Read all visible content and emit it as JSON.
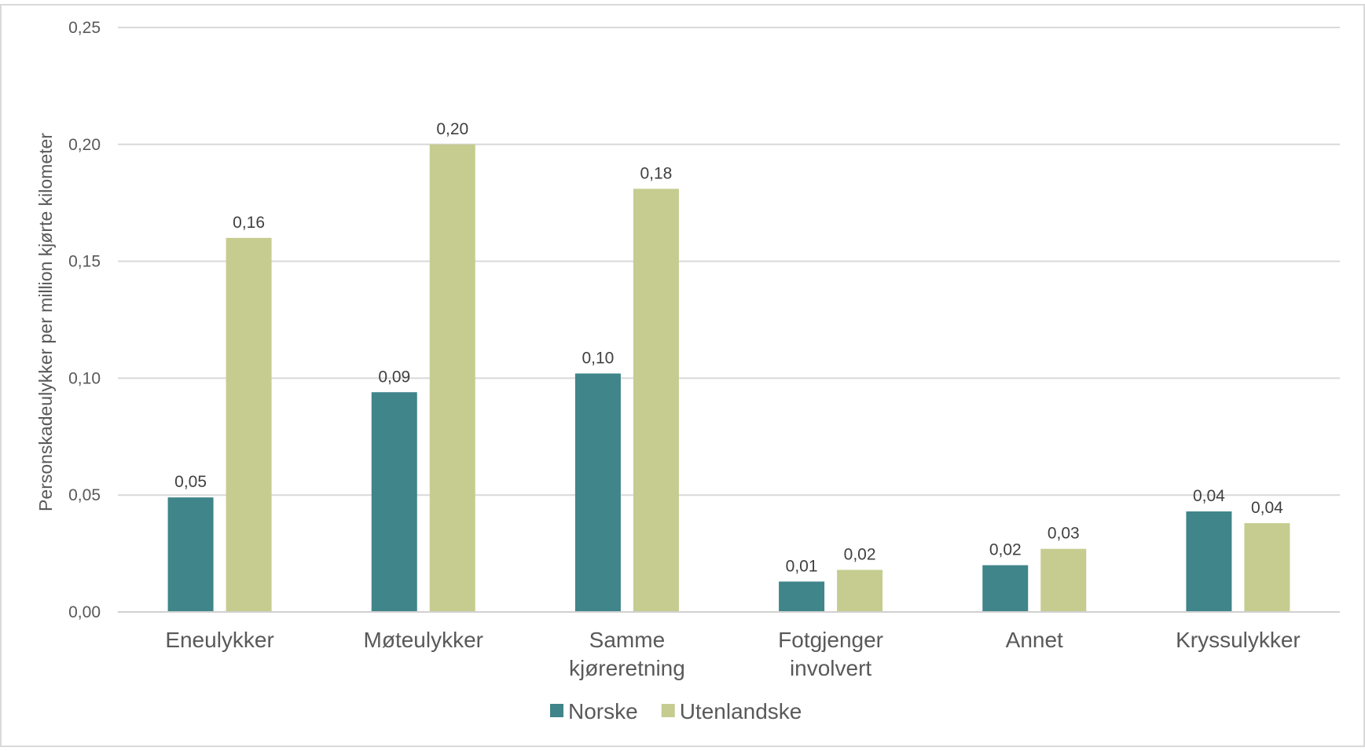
{
  "chart_data": {
    "type": "bar",
    "title": "",
    "xlabel": "",
    "ylabel": "Personskadeulykker per million kjørte kilometer",
    "ylim": [
      0,
      0.25
    ],
    "yticks": [
      0,
      0.05,
      0.1,
      0.15,
      0.2,
      0.25
    ],
    "ytick_labels": [
      "0,00",
      "0,05",
      "0,10",
      "0,15",
      "0,20",
      "0,25"
    ],
    "grid": true,
    "legend_position": "bottom",
    "categories": [
      [
        "Eneulykker"
      ],
      [
        "Møteulykker"
      ],
      [
        "Samme",
        "kjøreretning"
      ],
      [
        "Fotgjenger",
        "involvert"
      ],
      [
        "Annet"
      ],
      [
        "Kryssulykker"
      ]
    ],
    "series": [
      {
        "name": "Norske",
        "color": "#3f858a",
        "values": [
          0.049,
          0.094,
          0.102,
          0.013,
          0.02,
          0.043
        ],
        "labels": [
          "0,05",
          "0,09",
          "0,10",
          "0,01",
          "0,02",
          "0,04"
        ]
      },
      {
        "name": "Utenlandske",
        "color": "#c6cc8f",
        "values": [
          0.16,
          0.2,
          0.181,
          0.018,
          0.027,
          0.038
        ],
        "labels": [
          "0,16",
          "0,20",
          "0,18",
          "0,02",
          "0,03",
          "0,04"
        ]
      }
    ]
  }
}
